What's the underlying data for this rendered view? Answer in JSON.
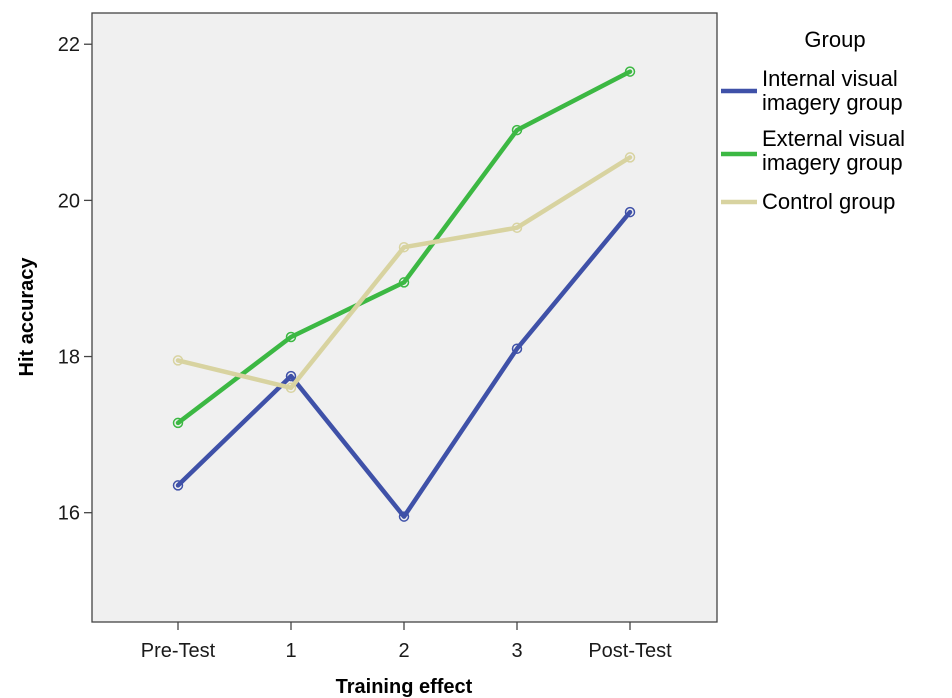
{
  "chart_data": {
    "type": "line",
    "categories": [
      "Pre-Test",
      "1",
      "2",
      "3",
      "Post-Test"
    ],
    "xlabel": "Training effect",
    "ylabel": "Hit accuracy",
    "ylim": [
      14.6,
      22.4
    ],
    "yticks": [
      16,
      18,
      20,
      22
    ],
    "grid": false,
    "legend_title": "Group",
    "legend_position": "right",
    "series": [
      {
        "name": "Internal visual imagery group",
        "name_lines": [
          "Internal visual",
          "imagery group"
        ],
        "color": "#3f51a8",
        "values": [
          16.35,
          17.75,
          15.95,
          18.1,
          19.85
        ]
      },
      {
        "name": "External visual imagery group",
        "name_lines": [
          "External visual",
          "imagery group"
        ],
        "color": "#3cb843",
        "values": [
          17.15,
          18.25,
          18.95,
          20.9,
          21.65
        ]
      },
      {
        "name": "Control group",
        "name_lines": [
          "Control group"
        ],
        "color": "#d8d3a0",
        "values": [
          17.95,
          17.6,
          19.4,
          19.65,
          20.55
        ]
      }
    ]
  }
}
